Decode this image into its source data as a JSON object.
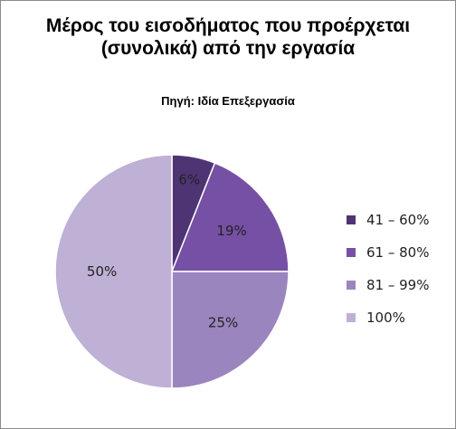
{
  "chart_data": {
    "type": "pie",
    "title": "Μέρος του εισοδήματος που προέρχεται (συνολικά) από την εργασία",
    "subtitle": "Πηγή: Ιδία Επεξεργασία",
    "categories": [
      "41 – 60%",
      "61 – 80%",
      "81 – 99%",
      "100%"
    ],
    "values": [
      6,
      19,
      25,
      50
    ],
    "value_labels": [
      "6%",
      "19%",
      "25%",
      "50%"
    ],
    "colors": [
      "#4f3474",
      "#7550a4",
      "#9b85bf",
      "#bfb0d5"
    ],
    "legend_position": "right"
  }
}
